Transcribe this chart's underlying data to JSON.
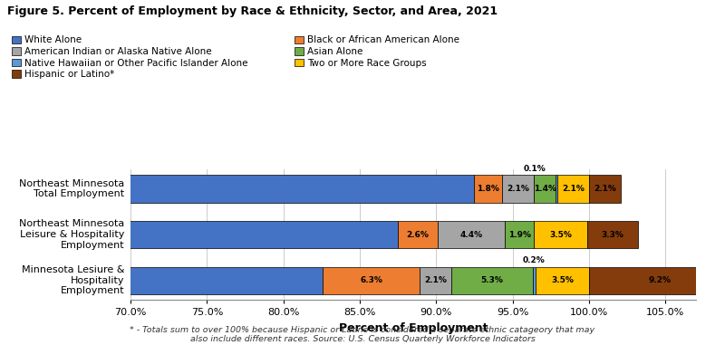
{
  "title": "Figure 5. Percent of Employment by Race & Ethnicity, Sector, and Area, 2021",
  "xlabel": "Percent of Employment",
  "footnote": "* - Totals sum to over 100% because Hispanic or Latino is considered a separate ethnic catageory that may\nalso include different races. Source: U.S. Census Quarterly Workforce Indicators",
  "categories": [
    "Minnesota Lesiure &\nHospitality\nEmployment",
    "Northeast Minnesota\nLeisure & Hospitality\nEmployment",
    "Northeast Minnesota\nTotal Employment"
  ],
  "series": [
    {
      "label": "White Alone",
      "color": "#4472C4",
      "values": [
        82.6,
        87.5,
        92.5
      ]
    },
    {
      "label": "Black or African American Alone",
      "color": "#ED7D31",
      "values": [
        6.3,
        2.6,
        1.8
      ]
    },
    {
      "label": "American Indian or Alaska Native Alone",
      "color": "#A5A5A5",
      "values": [
        2.1,
        4.4,
        2.1
      ]
    },
    {
      "label": "Asian Alone",
      "color": "#70AD47",
      "values": [
        5.3,
        1.9,
        1.4
      ]
    },
    {
      "label": "Native Hawaiian or Other Pacific Islander Alone",
      "color": "#5B9BD5",
      "values": [
        0.2,
        0.0,
        0.1
      ]
    },
    {
      "label": "Two or More Race Groups",
      "color": "#FFC000",
      "values": [
        3.5,
        3.5,
        2.1
      ]
    },
    {
      "label": "Hispanic or Latino*",
      "color": "#843C0C",
      "values": [
        9.2,
        3.3,
        2.1
      ]
    }
  ],
  "xlim": [
    70,
    107
  ],
  "xticks": [
    70,
    75,
    80,
    85,
    90,
    95,
    100,
    105
  ],
  "xticklabels": [
    "70.0%",
    "75.0%",
    "80.0%",
    "85.0%",
    "90.0%",
    "95.0%",
    "100.0%",
    "105.0%"
  ],
  "bar_height": 0.6,
  "figsize": [
    8.0,
    3.81
  ],
  "dpi": 100,
  "small_labels": [
    {
      "row": 2,
      "x": 96.45,
      "text": "0.1%"
    },
    {
      "row": 0,
      "x": 96.4,
      "text": "0.2%"
    }
  ],
  "legend_left": [
    "White Alone",
    "American Indian or Alaska Native Alone",
    "Native Hawaiian or Other Pacific Islander Alone",
    "Hispanic or Latino*"
  ],
  "legend_right": [
    "Black or African American Alone",
    "Asian Alone",
    "Two or More Race Groups"
  ],
  "legend_colors_left": [
    "#4472C4",
    "#A5A5A5",
    "#5B9BD5",
    "#843C0C"
  ],
  "legend_colors_right": [
    "#ED7D31",
    "#70AD47",
    "#FFC000"
  ]
}
